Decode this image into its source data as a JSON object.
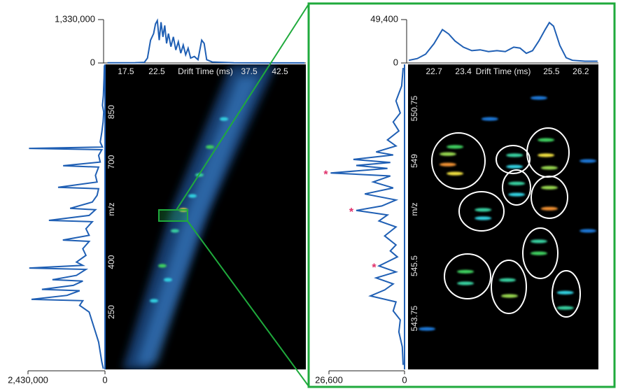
{
  "chart_data": [
    {
      "type": "ims-heatmap",
      "x_label": "Drift Time (ms)",
      "y_label": "m/z",
      "color": "#1f5fb4",
      "xlim": [
        14.1,
        46.7
      ],
      "xticks": [
        17.5,
        22.5,
        37.5,
        42.5
      ],
      "ylim": [
        78,
        993
      ],
      "yticks": [
        250,
        400,
        700,
        850
      ],
      "spots": {
        "x": [
          31.14,
          29.43,
          26.82,
          25.45,
          23.41,
          22.05,
          33.41,
          28.3,
          24.32
        ],
        "y": [
          745.2,
          661.3,
          556.5,
          493.6,
          388.8,
          283.9,
          829.0,
          598.4,
          346.9
        ],
        "values": [
          0.6,
          0.5,
          0.8,
          0.5,
          0.6,
          0.4,
          0.4,
          0.4,
          0.4
        ]
      },
      "drift_profile": {
        "ylim": [
          0,
          1330000
        ],
        "yticks": [
          0,
          {
            "value": 1330000,
            "label": "1,330,000"
          }
        ],
        "x": [
          14.5,
          19,
          20.5,
          21,
          21.5,
          22,
          22.3,
          22.6,
          22.9,
          23.2,
          23.5,
          23.8,
          24.1,
          24.4,
          24.8,
          25.2,
          25.6,
          26,
          26.4,
          26.8,
          27.2,
          27.6,
          28,
          28.6,
          29.2,
          29.8,
          30.2,
          30.6,
          31.5,
          33,
          35,
          40,
          46.5
        ],
        "values": [
          5000,
          8000,
          20000,
          150000,
          700000,
          900000,
          1200000,
          1300000,
          700000,
          1250000,
          800000,
          1150000,
          600000,
          900000,
          500000,
          800000,
          400000,
          650000,
          300000,
          550000,
          250000,
          450000,
          150000,
          200000,
          100000,
          700000,
          600000,
          100000,
          30000,
          20000,
          5000,
          3000,
          2000
        ]
      },
      "mass_spectrum": {
        "xlim": [
          0,
          2430000
        ],
        "xticks": [
          {
            "value": 2430000,
            "label": "2,430,000"
          },
          0
        ],
        "y": [
          990,
          950,
          900,
          870,
          850,
          820,
          790,
          760,
          745,
          741,
          737,
          720,
          700,
          689,
          685,
          660,
          640,
          624,
          620,
          600,
          580,
          561,
          557,
          540,
          525,
          521,
          500,
          480,
          466,
          462,
          440,
          420,
          400,
          390,
          382,
          378,
          360,
          347,
          343,
          330,
          318,
          314,
          300,
          288,
          284,
          270,
          250,
          220,
          190,
          160,
          130,
          100,
          80
        ],
        "values": [
          20000,
          30000,
          50000,
          80000,
          40000,
          60000,
          100000,
          150000,
          80000,
          2400000,
          100000,
          200000,
          150000,
          1320000,
          200000,
          300000,
          250000,
          1480000,
          200000,
          250000,
          400000,
          1100000,
          300000,
          500000,
          1770000,
          400000,
          600000,
          500000,
          1330000,
          500000,
          700000,
          600000,
          900000,
          700000,
          2390000,
          600000,
          900000,
          1660000,
          700000,
          1000000,
          1990000,
          800000,
          1200000,
          2320000,
          700000,
          800000,
          500000,
          400000,
          300000,
          200000,
          150000,
          100000,
          50000
        ]
      }
    },
    {
      "type": "ims-heatmap",
      "x_label": "Drift Time (ms)",
      "y_label": "m/z",
      "color": "#1f5fb4",
      "xlim": [
        22.08,
        26.62
      ],
      "xticks": [
        22.7,
        23.4,
        25.5,
        26.2
      ],
      "ylim": [
        542.05,
        552.22
      ],
      "yticks": [
        543.75,
        545.5,
        549,
        550.75
      ],
      "spots": {
        "x": [
          23.03,
          23.03,
          23.2,
          23.2,
          24.62,
          24.62,
          25.37,
          25.37,
          25.45,
          24.67,
          24.67,
          25.45,
          25.45,
          23.87,
          23.87,
          25.2,
          25.2,
          23.45,
          23.45,
          24.45,
          24.5,
          25.83,
          25.83,
          25.2,
          24.03,
          26.37,
          22.53,
          26.37
        ],
        "y": [
          549.23,
          548.88,
          548.58,
          549.47,
          549.19,
          548.81,
          549.7,
          549.19,
          548.77,
          548.25,
          547.88,
          548.11,
          547.41,
          547.37,
          547.09,
          546.32,
          545.92,
          545.31,
          544.92,
          545.03,
          544.5,
          544.61,
          544.1,
          551.1,
          550.4,
          546.67,
          543.4,
          549.0
        ],
        "values": [
          0.7,
          0.9,
          0.8,
          0.6,
          0.5,
          0.4,
          0.6,
          0.8,
          0.7,
          0.5,
          0.4,
          0.7,
          0.9,
          0.5,
          0.4,
          0.5,
          0.6,
          0.6,
          0.5,
          0.5,
          0.7,
          0.4,
          0.5,
          0.2,
          0.2,
          0.2,
          0.2,
          0.2
        ]
      },
      "drift_profile": {
        "ylim": [
          0,
          49400
        ],
        "yticks": [
          0,
          {
            "value": 49400,
            "label": "49,400"
          }
        ],
        "x": [
          22.1,
          22.3,
          22.5,
          22.7,
          22.9,
          23.05,
          23.2,
          23.4,
          23.6,
          23.8,
          24.0,
          24.2,
          24.4,
          24.6,
          24.75,
          24.9,
          25.05,
          25.2,
          25.35,
          25.45,
          25.55,
          25.7,
          25.85,
          26.0,
          26.3,
          26.6
        ],
        "values": [
          3000,
          5000,
          10000,
          22000,
          38000,
          33000,
          25000,
          18000,
          14000,
          15000,
          13000,
          14000,
          13000,
          18000,
          17000,
          11000,
          14000,
          25000,
          38000,
          46000,
          42000,
          20000,
          6000,
          3000,
          2000,
          2000
        ]
      },
      "mass_spectrum": {
        "xlim": [
          0,
          26600
        ],
        "xticks": [
          {
            "value": 26600,
            "label": "26,600"
          },
          0
        ],
        "y": [
          552.1,
          551.5,
          551.0,
          550.6,
          550.3,
          550.0,
          549.7,
          549.5,
          549.3,
          549.2,
          549.05,
          548.95,
          548.85,
          548.75,
          548.6,
          548.5,
          548.3,
          548.1,
          547.9,
          547.7,
          547.5,
          547.35,
          547.2,
          547.0,
          546.8,
          546.5,
          546.2,
          546.0,
          545.8,
          545.5,
          545.3,
          545.1,
          544.9,
          544.7,
          544.5,
          544.3,
          544.0,
          543.7,
          543.3,
          542.8,
          542.2
        ],
        "values": [
          500,
          1000,
          3000,
          1500,
          4000,
          2000,
          6000,
          3000,
          10000,
          4000,
          18000,
          5000,
          17000,
          6000,
          26000,
          5000,
          11000,
          4000,
          14000,
          3000,
          8000,
          17000,
          6000,
          9000,
          3000,
          7000,
          3000,
          5000,
          2500,
          9000,
          3000,
          10000,
          4000,
          7000,
          12000,
          3000,
          4000,
          1500,
          2000,
          800,
          500
        ]
      },
      "annotations": {
        "text": [
          "*",
          "*",
          "*"
        ],
        "y": [
          548.6,
          547.35,
          545.5
        ]
      }
    }
  ]
}
